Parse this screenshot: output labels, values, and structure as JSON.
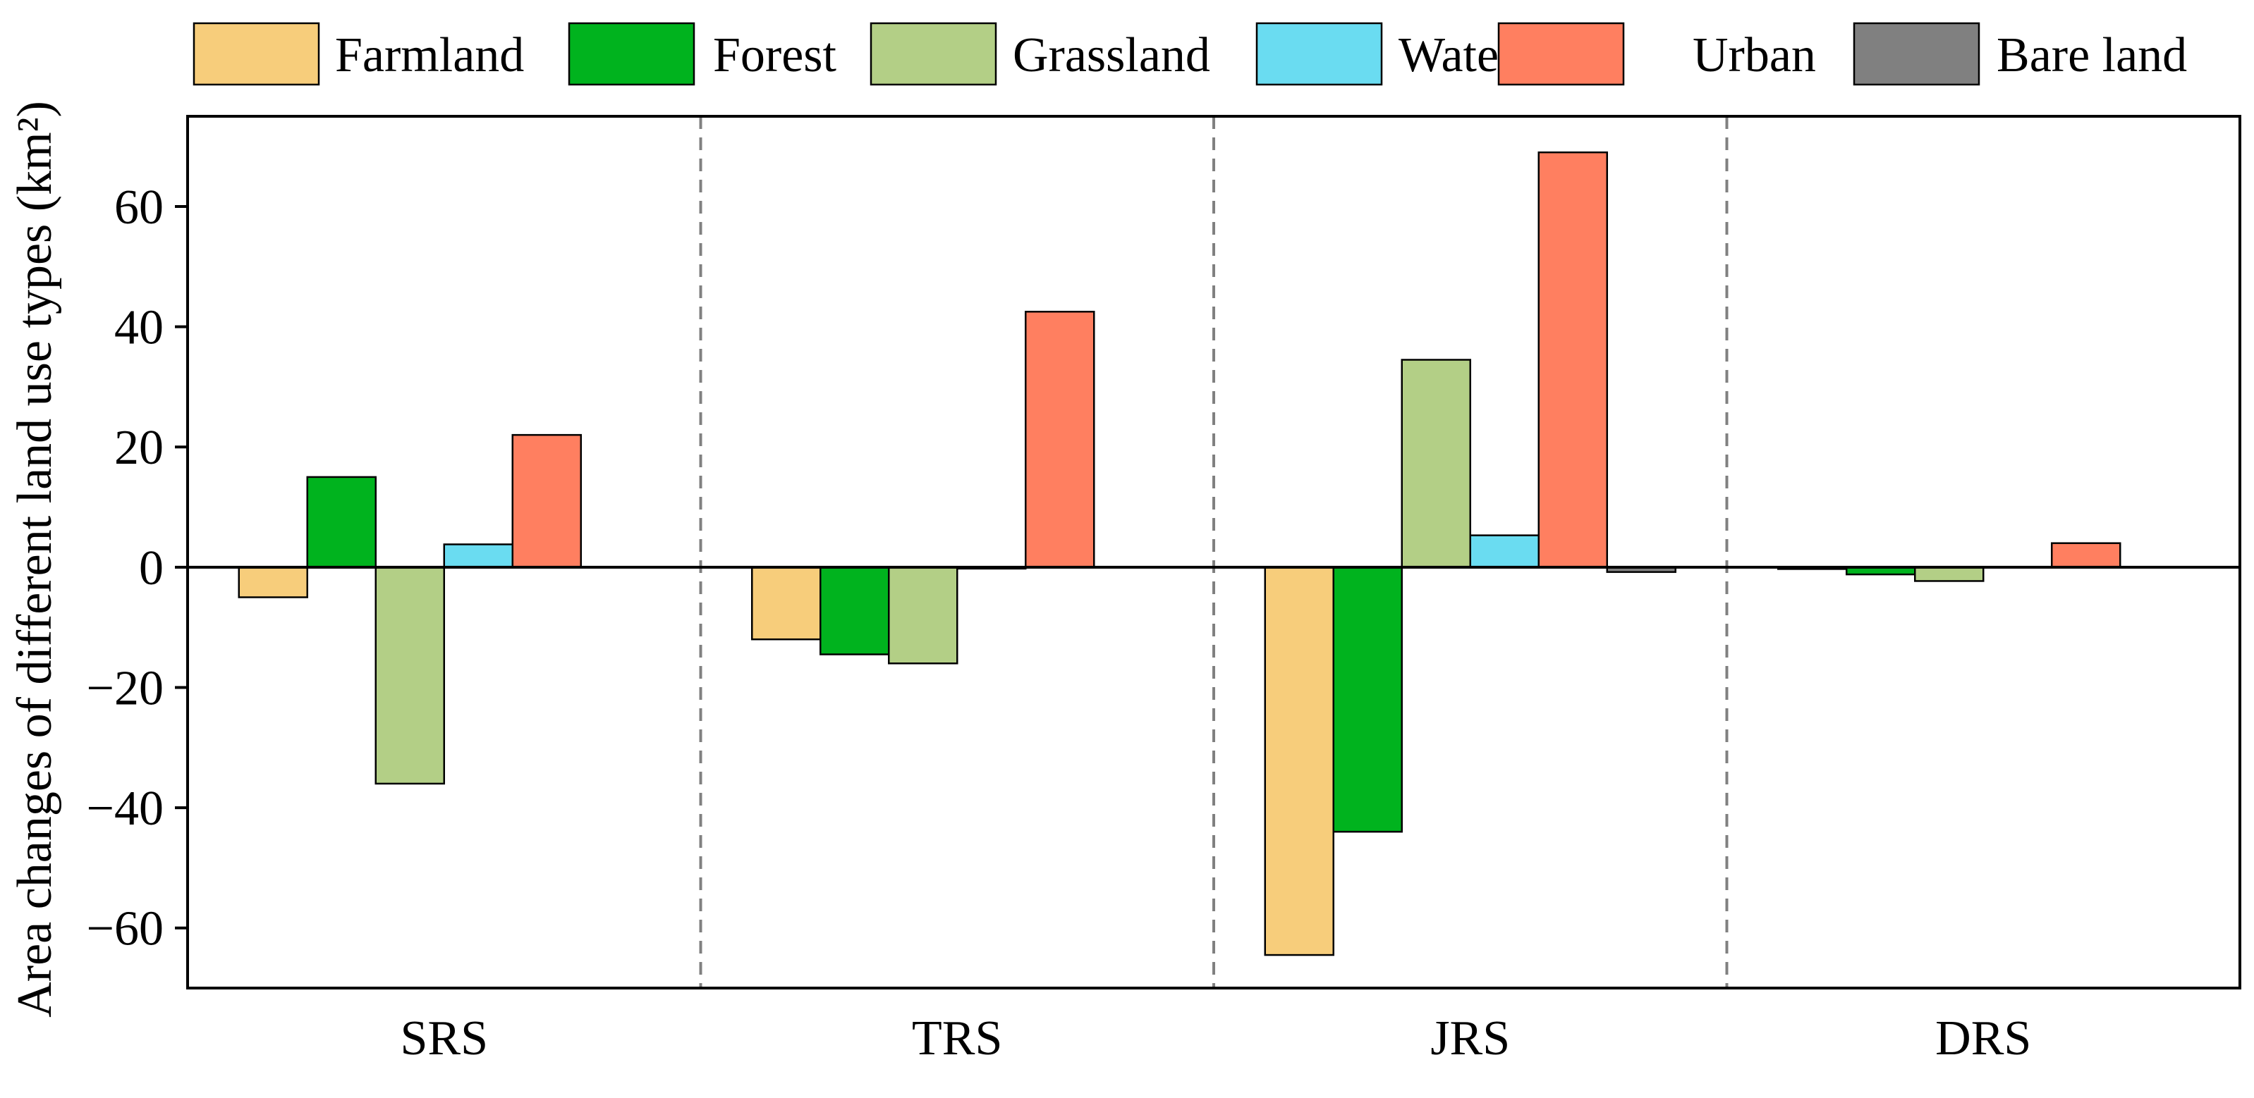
{
  "chart_data": {
    "type": "bar",
    "title": "",
    "xlabel": "",
    "ylabel": "Area changes of different land use types (km²)",
    "categories": [
      "SRS",
      "TRS",
      "JRS",
      "DRS"
    ],
    "ylim": [
      -70,
      75
    ],
    "yticks": [
      -60,
      -40,
      -20,
      0,
      20,
      40,
      60
    ],
    "grid": false,
    "legend_position": "top",
    "group_separators": "dashed",
    "series": [
      {
        "name": "Farmland",
        "color": "#F7CD7B",
        "values": [
          -5,
          -12,
          -64.5,
          -0.3
        ]
      },
      {
        "name": "Forest",
        "color": "#00B31E",
        "values": [
          15,
          -14.5,
          -44,
          -1.2
        ]
      },
      {
        "name": "Grassland",
        "color": "#B3CF86",
        "values": [
          -36,
          -16,
          34.5,
          -2.3
        ]
      },
      {
        "name": "Water",
        "color": "#6ADCF1",
        "values": [
          3.8,
          -0.2,
          5.3,
          0
        ]
      },
      {
        "name": "Urban",
        "color": "#FF7F60",
        "values": [
          22,
          42.5,
          69,
          4
        ]
      },
      {
        "name": "Bare land",
        "color": "#808080",
        "values": [
          0,
          0,
          -0.8,
          0
        ]
      }
    ]
  }
}
